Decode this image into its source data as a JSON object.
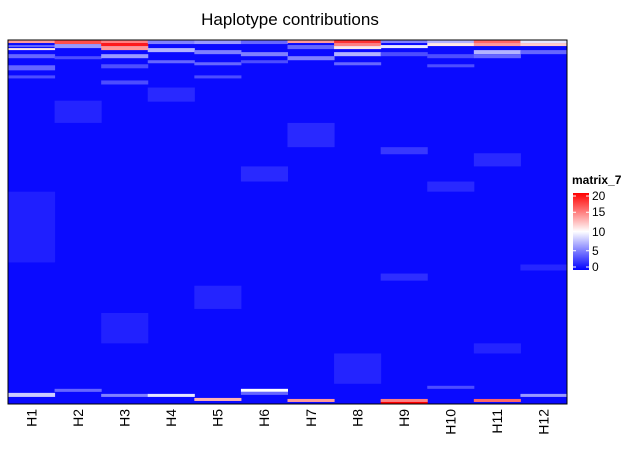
{
  "chart_data": {
    "type": "heatmap",
    "title": "Haplotype contributions",
    "columns": [
      "H1",
      "H2",
      "H3",
      "H4",
      "H5",
      "H6",
      "H7",
      "H8",
      "H9",
      "H10",
      "H11",
      "H12"
    ],
    "row_count": 360,
    "color_scale": {
      "name": "matrix_7",
      "min": 0,
      "max": 20,
      "ticks": [
        "20",
        "15",
        "10",
        "5",
        "0"
      ],
      "colors": {
        "low": "#0000ff",
        "mid": "#ffffff",
        "high": "#ff0000"
      },
      "mid_value": 10
    },
    "background_value": 0.4,
    "blocks": [
      {
        "col": 0,
        "r0": 0,
        "r1": 3,
        "v": 14
      },
      {
        "col": 0,
        "r0": 5,
        "r1": 7,
        "v": 4
      },
      {
        "col": 0,
        "r0": 8,
        "r1": 10,
        "v": 11
      },
      {
        "col": 0,
        "r0": 14,
        "r1": 18,
        "v": 4
      },
      {
        "col": 0,
        "r0": 25,
        "r1": 30,
        "v": 4
      },
      {
        "col": 0,
        "r0": 35,
        "r1": 38,
        "v": 3
      },
      {
        "col": 0,
        "r0": 150,
        "r1": 220,
        "v": 1.2
      },
      {
        "col": 0,
        "r0": 349,
        "r1": 353,
        "v": 8
      },
      {
        "col": 1,
        "r0": 0,
        "r1": 4,
        "v": 17
      },
      {
        "col": 1,
        "r0": 4,
        "r1": 8,
        "v": 6
      },
      {
        "col": 1,
        "r0": 16,
        "r1": 19,
        "v": 3
      },
      {
        "col": 1,
        "r0": 60,
        "r1": 82,
        "v": 1.4
      },
      {
        "col": 1,
        "r0": 345,
        "r1": 348,
        "v": 4
      },
      {
        "col": 2,
        "r0": 0,
        "r1": 3,
        "v": 15
      },
      {
        "col": 2,
        "r0": 3,
        "r1": 6,
        "v": 19
      },
      {
        "col": 2,
        "r0": 6,
        "r1": 10,
        "v": 14
      },
      {
        "col": 2,
        "r0": 14,
        "r1": 18,
        "v": 6
      },
      {
        "col": 2,
        "r0": 24,
        "r1": 28,
        "v": 3
      },
      {
        "col": 2,
        "r0": 40,
        "r1": 44,
        "v": 3
      },
      {
        "col": 2,
        "r0": 270,
        "r1": 300,
        "v": 1.3
      },
      {
        "col": 2,
        "r0": 350,
        "r1": 353,
        "v": 5
      },
      {
        "col": 3,
        "r0": 0,
        "r1": 4,
        "v": 5
      },
      {
        "col": 3,
        "r0": 8,
        "r1": 12,
        "v": 7
      },
      {
        "col": 3,
        "r0": 20,
        "r1": 23,
        "v": 4
      },
      {
        "col": 3,
        "r0": 47,
        "r1": 61,
        "v": 1.6
      },
      {
        "col": 3,
        "r0": 350,
        "r1": 353,
        "v": 9
      },
      {
        "col": 4,
        "r0": 0,
        "r1": 4,
        "v": 6
      },
      {
        "col": 4,
        "r0": 10,
        "r1": 14,
        "v": 5
      },
      {
        "col": 4,
        "r0": 22,
        "r1": 25,
        "v": 4
      },
      {
        "col": 4,
        "r0": 35,
        "r1": 38,
        "v": 3
      },
      {
        "col": 4,
        "r0": 243,
        "r1": 266,
        "v": 1.4
      },
      {
        "col": 4,
        "r0": 354,
        "r1": 357,
        "v": 13
      },
      {
        "col": 5,
        "r0": 0,
        "r1": 4,
        "v": 4
      },
      {
        "col": 5,
        "r0": 12,
        "r1": 16,
        "v": 5
      },
      {
        "col": 5,
        "r0": 20,
        "r1": 23,
        "v": 3
      },
      {
        "col": 5,
        "r0": 125,
        "r1": 140,
        "v": 1.6
      },
      {
        "col": 5,
        "r0": 345,
        "r1": 348,
        "v": 10
      },
      {
        "col": 5,
        "r0": 348,
        "r1": 351,
        "v": 4
      },
      {
        "col": 6,
        "r0": 0,
        "r1": 3,
        "v": 14
      },
      {
        "col": 6,
        "r0": 5,
        "r1": 9,
        "v": 4
      },
      {
        "col": 6,
        "r0": 16,
        "r1": 20,
        "v": 5
      },
      {
        "col": 6,
        "r0": 82,
        "r1": 106,
        "v": 1.6
      },
      {
        "col": 6,
        "r0": 355,
        "r1": 358,
        "v": 14
      },
      {
        "col": 7,
        "r0": 0,
        "r1": 3,
        "v": 18
      },
      {
        "col": 7,
        "r0": 3,
        "r1": 6,
        "v": 15
      },
      {
        "col": 7,
        "r0": 6,
        "r1": 9,
        "v": 11
      },
      {
        "col": 7,
        "r0": 12,
        "r1": 16,
        "v": 7
      },
      {
        "col": 7,
        "r0": 22,
        "r1": 25,
        "v": 4
      },
      {
        "col": 7,
        "r0": 310,
        "r1": 340,
        "v": 1.4
      },
      {
        "col": 8,
        "r0": 0,
        "r1": 3,
        "v": 5
      },
      {
        "col": 8,
        "r0": 5,
        "r1": 8,
        "v": 9
      },
      {
        "col": 8,
        "r0": 12,
        "r1": 16,
        "v": 3
      },
      {
        "col": 8,
        "r0": 106,
        "r1": 113,
        "v": 2.2
      },
      {
        "col": 8,
        "r0": 231,
        "r1": 238,
        "v": 1.8
      },
      {
        "col": 8,
        "r0": 355,
        "r1": 358,
        "v": 15
      },
      {
        "col": 8,
        "r0": 358,
        "r1": 360,
        "v": 20
      },
      {
        "col": 9,
        "r0": 0,
        "r1": 3,
        "v": 7
      },
      {
        "col": 9,
        "r0": 3,
        "r1": 6,
        "v": 11
      },
      {
        "col": 9,
        "r0": 14,
        "r1": 18,
        "v": 3
      },
      {
        "col": 9,
        "r0": 24,
        "r1": 27,
        "v": 3
      },
      {
        "col": 9,
        "r0": 140,
        "r1": 150,
        "v": 1.6
      },
      {
        "col": 9,
        "r0": 342,
        "r1": 345,
        "v": 3
      },
      {
        "col": 10,
        "r0": 0,
        "r1": 3,
        "v": 16
      },
      {
        "col": 10,
        "r0": 3,
        "r1": 6,
        "v": 14
      },
      {
        "col": 10,
        "r0": 10,
        "r1": 14,
        "v": 7
      },
      {
        "col": 10,
        "r0": 14,
        "r1": 18,
        "v": 4
      },
      {
        "col": 10,
        "r0": 112,
        "r1": 125,
        "v": 1.6
      },
      {
        "col": 10,
        "r0": 300,
        "r1": 310,
        "v": 1.4
      },
      {
        "col": 10,
        "r0": 355,
        "r1": 358,
        "v": 16
      },
      {
        "col": 11,
        "r0": 0,
        "r1": 3,
        "v": 9
      },
      {
        "col": 11,
        "r0": 3,
        "r1": 6,
        "v": 12
      },
      {
        "col": 11,
        "r0": 10,
        "r1": 14,
        "v": 4
      },
      {
        "col": 11,
        "r0": 222,
        "r1": 228,
        "v": 1.5
      },
      {
        "col": 11,
        "r0": 350,
        "r1": 353,
        "v": 6
      }
    ]
  }
}
